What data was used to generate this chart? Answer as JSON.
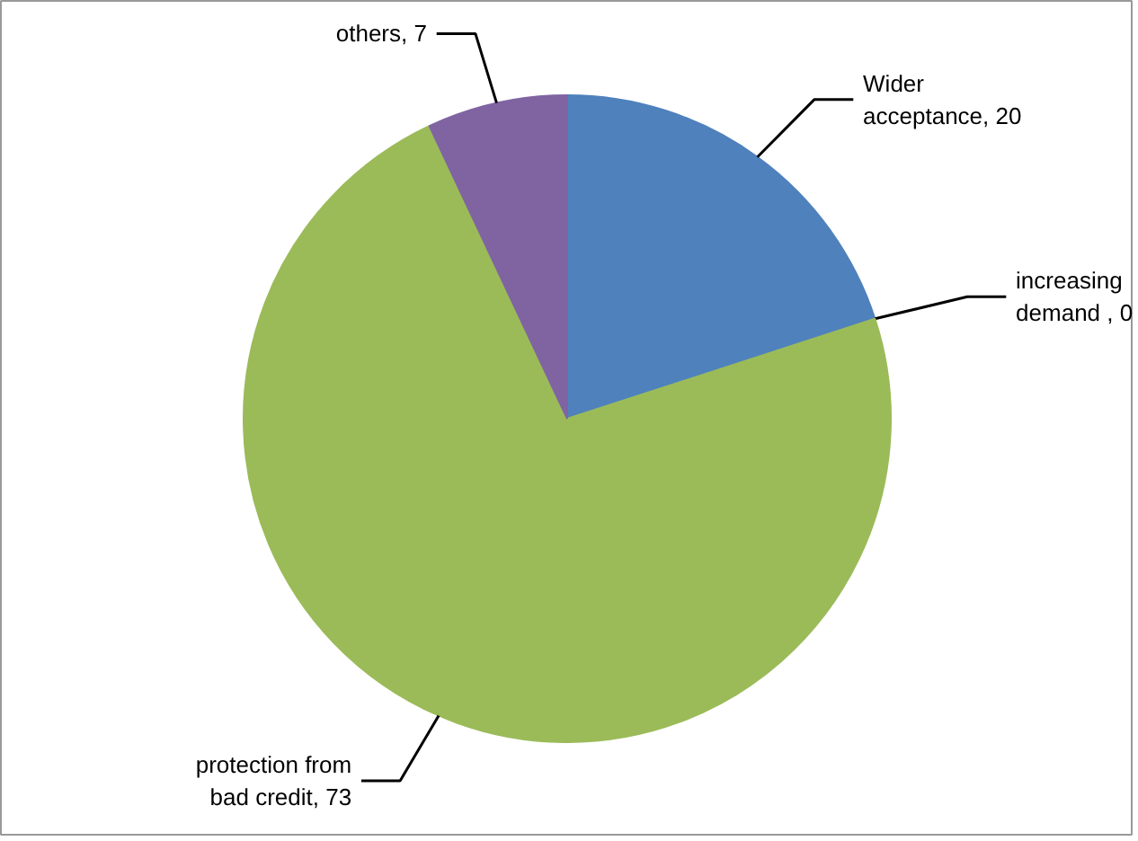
{
  "chart_data": {
    "type": "pie",
    "categories": [
      "Wider acceptance",
      "increasing demand",
      "protection from bad credit",
      "others"
    ],
    "values": [
      20,
      0,
      73,
      7
    ],
    "value_labels": [
      ", 20",
      " , 0",
      ", 73",
      ", 7"
    ],
    "colors": [
      "#4f81bd",
      "#c0504d",
      "#9bbb59",
      "#8064a2"
    ]
  }
}
